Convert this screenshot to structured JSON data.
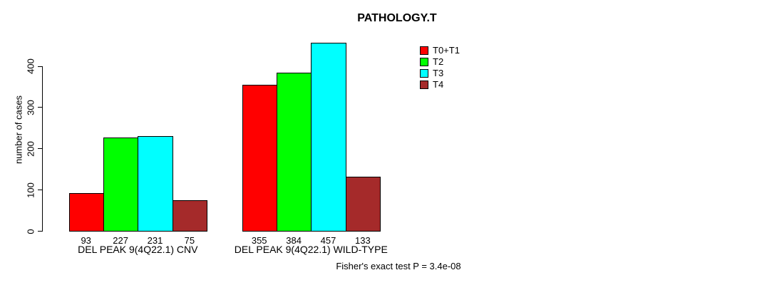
{
  "title": "PATHOLOGY.T",
  "chart_data": {
    "type": "bar",
    "title": "PATHOLOGY.T",
    "ylabel": "number of cases",
    "xlabel": "",
    "yticks": [
      0,
      100,
      200,
      300,
      400
    ],
    "ylim": [
      0,
      457
    ],
    "grid": false,
    "legend_position": "top-right",
    "categories": [
      "DEL PEAK 9(4Q22.1) CNV",
      "DEL PEAK 9(4Q22.1) WILD-TYPE"
    ],
    "series": [
      {
        "name": "T0+T1",
        "color": "#ff0000",
        "values": [
          93,
          355
        ]
      },
      {
        "name": "T2",
        "color": "#00ff00",
        "values": [
          227,
          384
        ]
      },
      {
        "name": "T3",
        "color": "#00ffff",
        "values": [
          231,
          457
        ]
      },
      {
        "name": "T4",
        "color": "#a52a2a",
        "values": [
          75,
          133
        ]
      }
    ],
    "bar_value_labels": [
      [
        93,
        227,
        231,
        75
      ],
      [
        355,
        384,
        457,
        133
      ]
    ],
    "annotation": "Fisher's exact test P = 3.4e-08"
  }
}
